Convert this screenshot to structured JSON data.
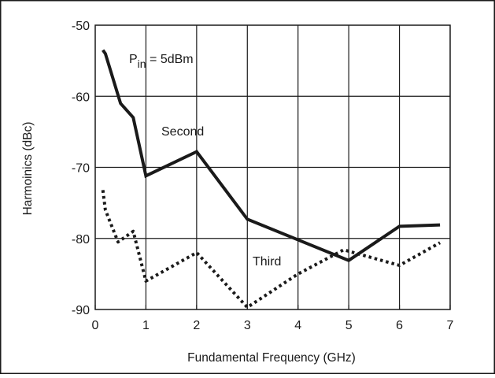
{
  "chart_data": {
    "type": "line",
    "title": "",
    "xlabel": "Fundamental Frequency (GHz)",
    "ylabel": "Harmoinics (dBc)",
    "xlim": [
      0,
      7
    ],
    "ylim": [
      -90,
      -50
    ],
    "x_ticks": [
      "0",
      "1",
      "2",
      "3",
      "4",
      "5",
      "6",
      "7"
    ],
    "y_ticks": [
      "-50",
      "-60",
      "-70",
      "-80",
      "-90"
    ],
    "grid": true,
    "annotation": {
      "base": "P",
      "subscript": "in",
      "rest": " = 5dBm"
    },
    "series": [
      {
        "name": "Second",
        "style": "solid",
        "color": "#1a1a1a",
        "x": [
          0.15,
          0.2,
          0.5,
          0.75,
          1.0,
          2.0,
          3.0,
          5.0,
          6.0,
          6.8
        ],
        "y": [
          -53.5,
          -54,
          -61,
          -63,
          -71.2,
          -67.8,
          -77.3,
          -83.1,
          -78.3,
          -78.1
        ]
      },
      {
        "name": "Third",
        "style": "dotted",
        "color": "#1a1a1a",
        "x": [
          0.15,
          0.2,
          0.45,
          0.75,
          1.0,
          2.0,
          3.0,
          4.0,
          4.9,
          6.0,
          6.8
        ],
        "y": [
          -73.2,
          -76,
          -80.5,
          -79,
          -86,
          -82,
          -89.7,
          -85,
          -81.6,
          -83.8,
          -80.6
        ]
      }
    ]
  }
}
